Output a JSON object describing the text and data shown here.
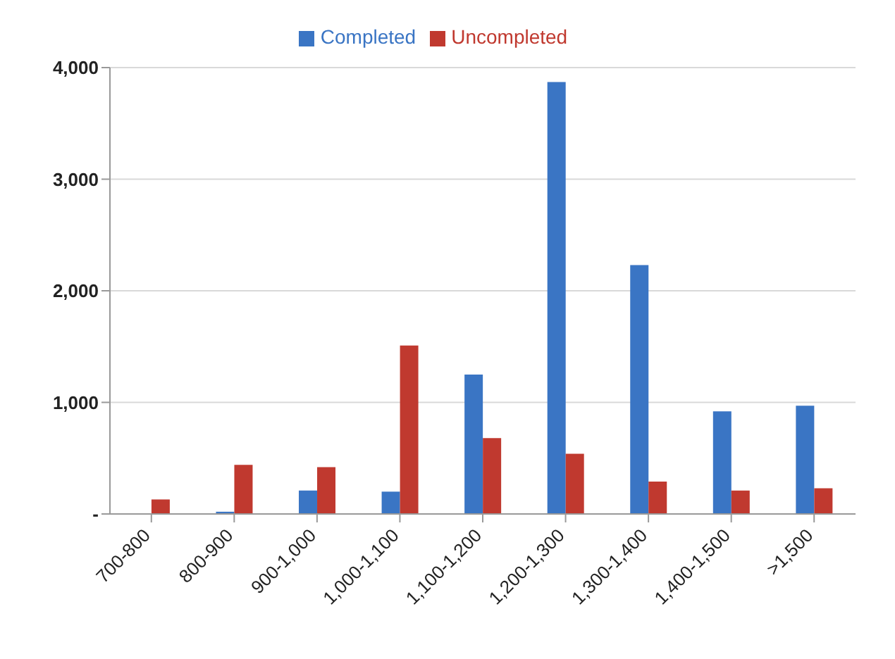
{
  "chart_data": {
    "type": "bar",
    "categories": [
      "700-800",
      "800-900",
      "900-1,000",
      "1,000-1,100",
      "1,100-1,200",
      "1,200-1,300",
      "1,300-1,400",
      "1,400-1,500",
      ">1,500"
    ],
    "series": [
      {
        "name": "Completed",
        "color": "#3a75c4",
        "values": [
          0,
          20,
          210,
          200,
          1250,
          3870,
          2230,
          920,
          970
        ]
      },
      {
        "name": "Uncompleted",
        "color": "#c0392f",
        "values": [
          130,
          440,
          420,
          1510,
          680,
          540,
          290,
          210,
          230
        ]
      }
    ],
    "ylim": [
      0,
      4000
    ],
    "yticks": [
      {
        "value": 0,
        "label": "-"
      },
      {
        "value": 1000,
        "label": "1,000"
      },
      {
        "value": 2000,
        "label": "2,000"
      },
      {
        "value": 3000,
        "label": "3,000"
      },
      {
        "value": 4000,
        "label": "4,000"
      }
    ],
    "grid": "y",
    "legend": "top"
  }
}
